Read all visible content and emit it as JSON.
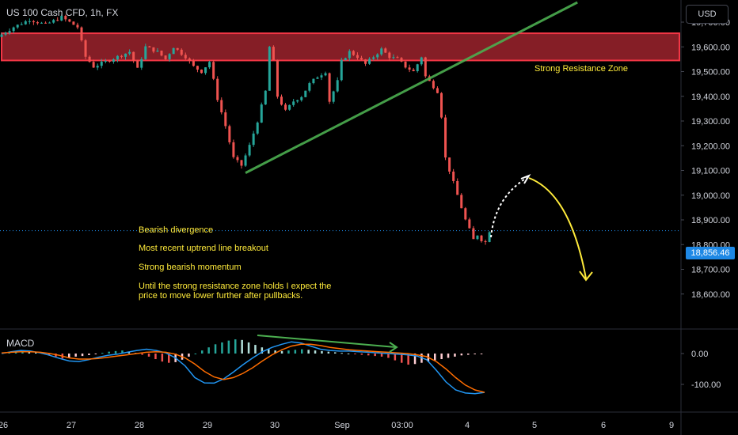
{
  "header": {
    "title": "US 100 Cash CFD, 1h, FX",
    "currency_button": "USD"
  },
  "indicator": {
    "label": "MACD"
  },
  "annotations": {
    "resistance_label": "Strong Resistance Zone",
    "notes": [
      "Bearish divergence",
      "Most recent uptrend line breakout",
      "Strong bearish momentum",
      "Until the strong resistance zone holds I expect the",
      "price to move lower further after pullbacks."
    ]
  },
  "last_price_label": "18,856.46",
  "colors": {
    "up": "#26a69a",
    "down": "#ef5350",
    "resistance": "#f23645",
    "trendline": "#4caf50",
    "annotation": "#ffeb3b",
    "macd_line": "#2196f3",
    "signal_line": "#ff6d00",
    "background": "#000000"
  },
  "chart_data": [
    {
      "type": "candlestick",
      "title": "US 100 Cash CFD, 1h, FX",
      "x_ticks": [
        "26",
        "27",
        "28",
        "29",
        "30",
        "Sep",
        "03:00",
        "4",
        "5",
        "6",
        "9"
      ],
      "y_ticks": [
        "19,700.00",
        "19,600.00",
        "19,500.00",
        "19,400.00",
        "19,300.00",
        "19,200.00",
        "19,100.00",
        "19,000.00",
        "18,900.00",
        "18,800.00",
        "18,700.00",
        "18,600.00"
      ],
      "ylim": [
        18570,
        19780
      ],
      "last_price": 18856.46,
      "price_path": [
        [
          0,
          19640
        ],
        [
          4,
          19680
        ],
        [
          8,
          19710
        ],
        [
          12,
          19690
        ],
        [
          16,
          19720
        ],
        [
          20,
          19680
        ],
        [
          22,
          19560
        ],
        [
          24,
          19520
        ],
        [
          27,
          19540
        ],
        [
          30,
          19560
        ],
        [
          33,
          19580
        ],
        [
          35,
          19510
        ],
        [
          37,
          19600
        ],
        [
          40,
          19580
        ],
        [
          42,
          19550
        ],
        [
          44,
          19600
        ],
        [
          47,
          19560
        ],
        [
          49,
          19520
        ],
        [
          51,
          19500
        ],
        [
          53,
          19540
        ],
        [
          55,
          19390
        ],
        [
          57,
          19280
        ],
        [
          59,
          19150
        ],
        [
          61,
          19120
        ],
        [
          63,
          19200
        ],
        [
          65,
          19300
        ],
        [
          67,
          19420
        ],
        [
          68,
          19600
        ],
        [
          69,
          19540
        ],
        [
          70,
          19400
        ],
        [
          72,
          19340
        ],
        [
          74,
          19380
        ],
        [
          76,
          19400
        ],
        [
          78,
          19450
        ],
        [
          80,
          19480
        ],
        [
          82,
          19500
        ],
        [
          83,
          19380
        ],
        [
          85,
          19460
        ],
        [
          86,
          19540
        ],
        [
          88,
          19580
        ],
        [
          90,
          19560
        ],
        [
          92,
          19530
        ],
        [
          94,
          19560
        ],
        [
          96,
          19590
        ],
        [
          98,
          19560
        ],
        [
          100,
          19550
        ],
        [
          102,
          19520
        ],
        [
          104,
          19500
        ],
        [
          106,
          19560
        ],
        [
          107,
          19480
        ],
        [
          108,
          19460
        ],
        [
          110,
          19420
        ],
        [
          111,
          19320
        ],
        [
          112,
          19150
        ],
        [
          113,
          19100
        ],
        [
          114,
          19050
        ],
        [
          115,
          19000
        ],
        [
          116,
          18950
        ],
        [
          117,
          18900
        ],
        [
          118,
          18860
        ],
        [
          119,
          18820
        ],
        [
          120,
          18840
        ],
        [
          121,
          18820
        ],
        [
          122,
          18810
        ],
        [
          123,
          18856
        ]
      ],
      "resistance_zone": [
        19545,
        19655
      ],
      "trendline": [
        [
          61,
          19090
        ],
        [
          144,
          19780
        ]
      ]
    },
    {
      "type": "histogram+line",
      "title": "MACD",
      "y_ticks": [
        "0.00",
        "-100.00"
      ],
      "ylim": [
        -150,
        60
      ],
      "histogram": [
        2,
        4,
        6,
        8,
        6,
        4,
        2,
        -4,
        -10,
        -16,
        -14,
        -10,
        -8,
        -5,
        -2,
        2,
        6,
        8,
        10,
        6,
        2,
        -4,
        -10,
        -18,
        -26,
        -30,
        -28,
        -20,
        -10,
        0,
        10,
        20,
        30,
        36,
        42,
        46,
        44,
        36,
        28,
        20,
        14,
        10,
        8,
        10,
        12,
        14,
        12,
        10,
        8,
        6,
        4,
        2,
        0,
        -2,
        -4,
        -6,
        -8,
        -10,
        -14,
        -22,
        -30,
        -36,
        -34,
        -30,
        -26,
        -22,
        -18,
        -14,
        -10,
        -6,
        -4,
        -2,
        -1
      ],
      "macd_line": [
        0,
        6,
        10,
        8,
        2,
        -6,
        -16,
        -24,
        -26,
        -20,
        -12,
        -6,
        -2,
        4,
        10,
        14,
        10,
        2,
        -14,
        -40,
        -78,
        -95,
        -96,
        -82,
        -60,
        -36,
        -14,
        6,
        20,
        30,
        38,
        34,
        24,
        14,
        10,
        8,
        8,
        6,
        4,
        2,
        0,
        -2,
        -4,
        -8,
        -20,
        -54,
        -92,
        -118,
        -128,
        -130,
        -126
      ],
      "signal_line": [
        2,
        4,
        6,
        6,
        4,
        0,
        -6,
        -14,
        -18,
        -18,
        -16,
        -12,
        -8,
        -4,
        0,
        4,
        6,
        4,
        -2,
        -14,
        -34,
        -58,
        -76,
        -84,
        -78,
        -64,
        -46,
        -24,
        -4,
        12,
        24,
        30,
        30,
        26,
        20,
        16,
        12,
        10,
        8,
        6,
        4,
        2,
        0,
        -4,
        -10,
        -26,
        -50,
        -78,
        -102,
        -118,
        -126
      ]
    }
  ]
}
